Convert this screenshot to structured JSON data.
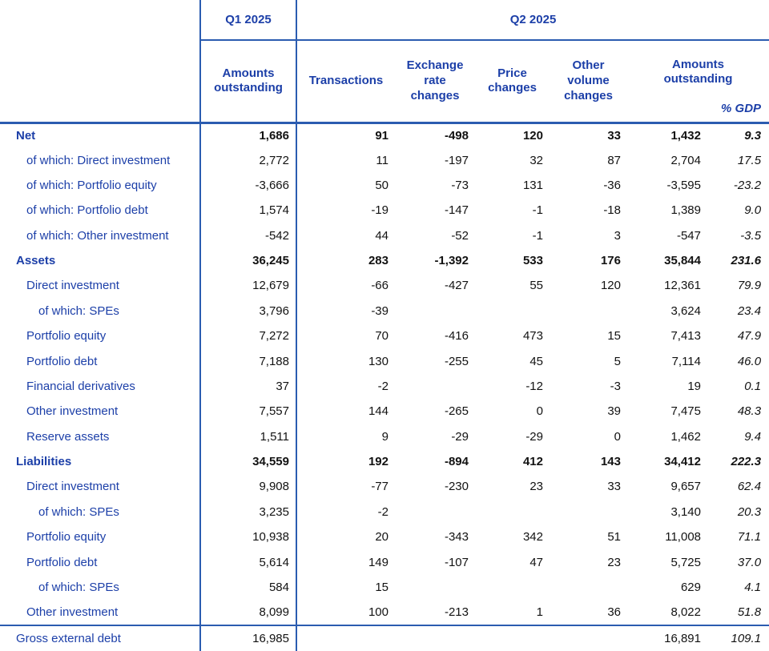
{
  "table": {
    "period_q1": "Q1 2025",
    "period_q2": "Q2 2025",
    "columns": [
      {
        "key": "q1-amounts-outstanding",
        "label": "Amounts outstanding"
      },
      {
        "key": "transactions",
        "label": "Transactions"
      },
      {
        "key": "exchange-rate-changes",
        "label": "Exchange rate changes"
      },
      {
        "key": "price-changes",
        "label": "Price changes"
      },
      {
        "key": "other-volume-changes",
        "label": "Other volume changes"
      },
      {
        "key": "q2-amounts-outstanding",
        "label": "Amounts outstanding"
      },
      {
        "key": "pct-gdp",
        "label": "% GDP"
      }
    ],
    "rows": [
      {
        "label": "Net",
        "indent": 0,
        "bold": true,
        "footer": false,
        "values": [
          "1,686",
          "91",
          "-498",
          "120",
          "33",
          "1,432",
          "9.3"
        ]
      },
      {
        "label": "of which: Direct investment",
        "indent": 1,
        "bold": false,
        "footer": false,
        "values": [
          "2,772",
          "11",
          "-197",
          "32",
          "87",
          "2,704",
          "17.5"
        ]
      },
      {
        "label": "of which: Portfolio equity",
        "indent": 1,
        "bold": false,
        "footer": false,
        "values": [
          "-3,666",
          "50",
          "-73",
          "131",
          "-36",
          "-3,595",
          "-23.2"
        ]
      },
      {
        "label": "of which: Portfolio debt",
        "indent": 1,
        "bold": false,
        "footer": false,
        "values": [
          "1,574",
          "-19",
          "-147",
          "-1",
          "-18",
          "1,389",
          "9.0"
        ]
      },
      {
        "label": "of which: Other investment",
        "indent": 1,
        "bold": false,
        "footer": false,
        "values": [
          "-542",
          "44",
          "-52",
          "-1",
          "3",
          "-547",
          "-3.5"
        ]
      },
      {
        "label": "Assets",
        "indent": 0,
        "bold": true,
        "footer": false,
        "values": [
          "36,245",
          "283",
          "-1,392",
          "533",
          "176",
          "35,844",
          "231.6"
        ]
      },
      {
        "label": "Direct investment",
        "indent": 1,
        "bold": false,
        "footer": false,
        "values": [
          "12,679",
          "-66",
          "-427",
          "55",
          "120",
          "12,361",
          "79.9"
        ]
      },
      {
        "label": "of which: SPEs",
        "indent": 2,
        "bold": false,
        "footer": false,
        "values": [
          "3,796",
          "-39",
          "",
          "",
          "",
          "3,624",
          "23.4"
        ]
      },
      {
        "label": "Portfolio equity",
        "indent": 1,
        "bold": false,
        "footer": false,
        "values": [
          "7,272",
          "70",
          "-416",
          "473",
          "15",
          "7,413",
          "47.9"
        ]
      },
      {
        "label": "Portfolio debt",
        "indent": 1,
        "bold": false,
        "footer": false,
        "values": [
          "7,188",
          "130",
          "-255",
          "45",
          "5",
          "7,114",
          "46.0"
        ]
      },
      {
        "label": "Financial derivatives",
        "indent": 1,
        "bold": false,
        "footer": false,
        "values": [
          "37",
          "-2",
          "",
          "-12",
          "-3",
          "19",
          "0.1"
        ]
      },
      {
        "label": "Other investment",
        "indent": 1,
        "bold": false,
        "footer": false,
        "values": [
          "7,557",
          "144",
          "-265",
          "0",
          "39",
          "7,475",
          "48.3"
        ]
      },
      {
        "label": "Reserve assets",
        "indent": 1,
        "bold": false,
        "footer": false,
        "values": [
          "1,511",
          "9",
          "-29",
          "-29",
          "0",
          "1,462",
          "9.4"
        ]
      },
      {
        "label": "Liabilities",
        "indent": 0,
        "bold": true,
        "footer": false,
        "values": [
          "34,559",
          "192",
          "-894",
          "412",
          "143",
          "34,412",
          "222.3"
        ]
      },
      {
        "label": "Direct investment",
        "indent": 1,
        "bold": false,
        "footer": false,
        "values": [
          "9,908",
          "-77",
          "-230",
          "23",
          "33",
          "9,657",
          "62.4"
        ]
      },
      {
        "label": "of which: SPEs",
        "indent": 2,
        "bold": false,
        "footer": false,
        "values": [
          "3,235",
          "-2",
          "",
          "",
          "",
          "3,140",
          "20.3"
        ]
      },
      {
        "label": "Portfolio equity",
        "indent": 1,
        "bold": false,
        "footer": false,
        "values": [
          "10,938",
          "20",
          "-343",
          "342",
          "51",
          "11,008",
          "71.1"
        ]
      },
      {
        "label": "Portfolio debt",
        "indent": 1,
        "bold": false,
        "footer": false,
        "values": [
          "5,614",
          "149",
          "-107",
          "47",
          "23",
          "5,725",
          "37.0"
        ]
      },
      {
        "label": "of which: SPEs",
        "indent": 2,
        "bold": false,
        "footer": false,
        "values": [
          "584",
          "15",
          "",
          "",
          "",
          "629",
          "4.1"
        ]
      },
      {
        "label": "Other investment",
        "indent": 1,
        "bold": false,
        "footer": false,
        "values": [
          "8,099",
          "100",
          "-213",
          "1",
          "36",
          "8,022",
          "51.8"
        ]
      },
      {
        "label": "Gross external debt",
        "indent": 0,
        "bold": false,
        "footer": true,
        "values": [
          "16,985",
          "",
          "",
          "",
          "",
          "16,891",
          "109.1"
        ]
      }
    ],
    "colors": {
      "label_blue": "#1c3fa8",
      "border_blue": "#2b5cb0",
      "number_ink": "#121212"
    }
  }
}
